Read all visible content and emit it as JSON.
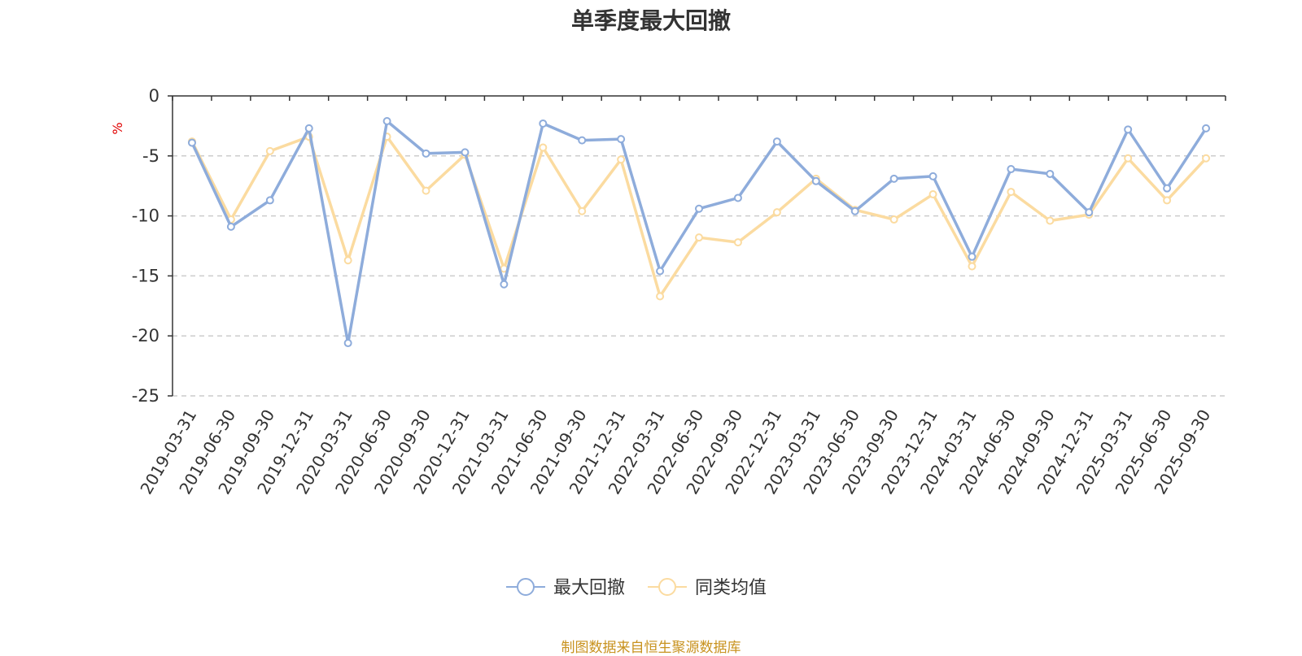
{
  "chart_data": {
    "type": "line",
    "title": "单季度最大回撤",
    "ylabel": "%",
    "ylim": [
      -25,
      0
    ],
    "yticks": [
      "0",
      "-5",
      "-10",
      "-15",
      "-20",
      "-25"
    ],
    "y_tick_values": [
      0,
      -5,
      -10,
      -15,
      -20,
      -25
    ],
    "grid": true,
    "legend_position": "bottom",
    "categories": [
      "2019-03-31",
      "2019-06-30",
      "2019-09-30",
      "2019-12-31",
      "2020-03-31",
      "2020-06-30",
      "2020-09-30",
      "2020-12-31",
      "2021-03-31",
      "2021-06-30",
      "2021-09-30",
      "2021-12-31",
      "2022-03-31",
      "2022-06-30",
      "2022-09-30",
      "2022-12-31",
      "2023-03-31",
      "2023-06-30",
      "2023-09-30",
      "2023-12-31",
      "2024-03-31",
      "2024-06-30",
      "2024-09-30",
      "2024-12-31",
      "2025-03-31",
      "2025-06-30",
      "2025-09-30"
    ],
    "series": [
      {
        "name": "最大回撤",
        "color": "#8eacdb",
        "values": [
          -3.9,
          -10.9,
          -8.7,
          -2.7,
          -20.6,
          -2.1,
          -4.8,
          -4.7,
          -15.7,
          -2.3,
          -3.7,
          -3.6,
          -14.6,
          -9.4,
          -8.5,
          -3.8,
          -7.1,
          -9.6,
          -6.9,
          -6.7,
          -13.4,
          -6.1,
          -6.5,
          -9.7,
          -2.8,
          -7.7,
          -2.7
        ]
      },
      {
        "name": "同类均值",
        "color": "#fbdba0",
        "values": [
          -3.8,
          -10.3,
          -4.6,
          -3.4,
          -13.7,
          -3.4,
          -7.9,
          -4.9,
          -14.4,
          -4.3,
          -9.6,
          -5.3,
          -16.7,
          -11.8,
          -12.2,
          -9.7,
          -6.9,
          -9.5,
          -10.3,
          -8.2,
          -14.2,
          -8.0,
          -10.4,
          -9.9,
          -5.2,
          -8.7,
          -5.2
        ]
      }
    ]
  },
  "source_note": "制图数据来自恒生聚源数据库",
  "colors": {
    "axis": "#333333",
    "grid": "#cccccc",
    "ylabel": "#e00000",
    "source_note": "#c8921e",
    "title": "#333333"
  }
}
